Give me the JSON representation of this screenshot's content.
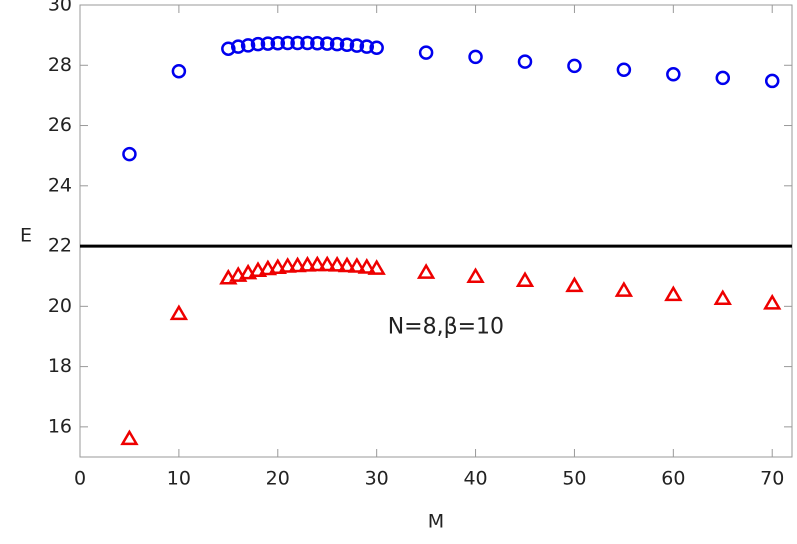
{
  "chart_data": {
    "type": "scatter",
    "xlabel": "M",
    "ylabel": "E",
    "annotation": "N=8,β=10",
    "hline": 22,
    "xlim": [
      0,
      72
    ],
    "ylim": [
      15,
      30
    ],
    "xticks": [
      0,
      10,
      20,
      30,
      40,
      50,
      60,
      70
    ],
    "yticks": [
      16,
      18,
      20,
      22,
      24,
      26,
      28,
      30
    ],
    "series": [
      {
        "marker": "circle",
        "color": "#0000ee",
        "x": [
          5,
          10,
          15,
          16,
          17,
          18,
          19,
          20,
          21,
          22,
          23,
          24,
          25,
          26,
          27,
          28,
          29,
          30,
          35,
          40,
          45,
          50,
          55,
          60,
          65,
          70
        ],
        "values": [
          25.05,
          27.8,
          28.55,
          28.62,
          28.66,
          28.7,
          28.72,
          28.73,
          28.74,
          28.74,
          28.74,
          28.73,
          28.72,
          28.7,
          28.68,
          28.65,
          28.62,
          28.58,
          28.42,
          28.28,
          28.12,
          27.98,
          27.85,
          27.7,
          27.58,
          27.48
        ]
      },
      {
        "marker": "triangle",
        "color": "#ee0000",
        "x": [
          5,
          10,
          15,
          16,
          17,
          18,
          19,
          20,
          21,
          22,
          23,
          24,
          25,
          26,
          27,
          28,
          29,
          30,
          35,
          40,
          45,
          50,
          55,
          60,
          65,
          70
        ],
        "values": [
          15.6,
          19.75,
          20.93,
          21.02,
          21.1,
          21.18,
          21.24,
          21.28,
          21.32,
          21.34,
          21.36,
          21.37,
          21.37,
          21.36,
          21.34,
          21.32,
          21.29,
          21.25,
          21.12,
          20.98,
          20.85,
          20.68,
          20.52,
          20.38,
          20.25,
          20.1
        ]
      }
    ]
  }
}
